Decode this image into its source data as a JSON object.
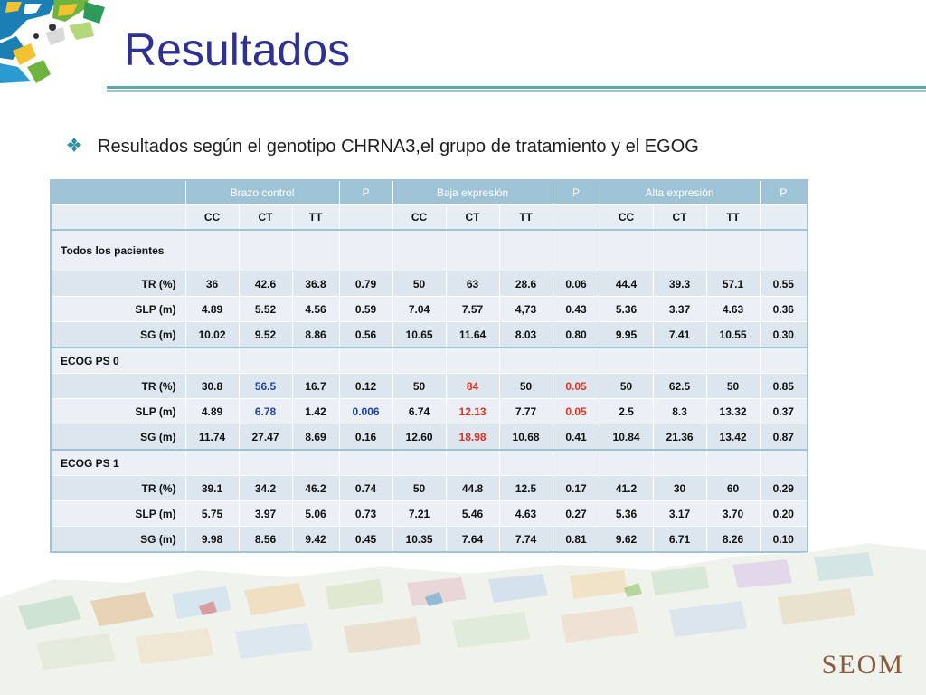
{
  "slide": {
    "title": "Resultados",
    "subtitle": "Resultados según el genotipo CHRNA3,el grupo de tratamiento y el EGOG",
    "logo_text": "SEOM"
  },
  "colors": {
    "title": "#2e3192",
    "header_bg": "#9ec3d6",
    "highlight_blue": "#1f3fa8",
    "highlight_red": "#e0311e"
  },
  "table": {
    "group_headers": [
      "",
      "Brazo control",
      "P",
      "Baja expresión",
      "P",
      "Alta expresión",
      "P"
    ],
    "sub_headers": [
      "",
      "CC",
      "CT",
      "TT",
      "",
      "CC",
      "CT",
      "TT",
      "",
      "CC",
      "CT",
      "TT",
      ""
    ],
    "sections": [
      {
        "label": "Todos los pacientes",
        "rows": [
          {
            "label": "TR (%)",
            "cells": [
              "36",
              "42.6",
              "36.8",
              "0.79",
              "50",
              "63",
              "28.6",
              "0.06",
              "44.4",
              "39.3",
              "57.1",
              "0.55"
            ]
          },
          {
            "label": "SLP (m)",
            "cells": [
              "4.89",
              "5.52",
              "4.56",
              "0.59",
              "7.04",
              "7.57",
              "4,73",
              "0.43",
              "5.36",
              "3.37",
              "4.63",
              "0.36"
            ]
          },
          {
            "label": "SG  (m)",
            "cells": [
              "10.02",
              "9.52",
              "8.86",
              "0.56",
              "10.65",
              "11.64",
              "8.03",
              "0.80",
              "9.95",
              "7.41",
              "10.55",
              "0.30"
            ]
          }
        ]
      },
      {
        "label": "ECOG PS 0",
        "rows": [
          {
            "label": "TR  (%)",
            "cells": [
              "30.8",
              "56.5",
              "16.7",
              "0.12",
              "50",
              "84",
              "50",
              "0.05",
              "50",
              "62.5",
              "50",
              "0.85"
            ]
          },
          {
            "label": "SLP  (m)",
            "cells": [
              "4.89",
              "6.78",
              "1.42",
              "0.006",
              "6.74",
              "12.13",
              "7.77",
              "0.05",
              "2.5",
              "8.3",
              "13.32",
              "0.37"
            ]
          },
          {
            "label": "SG (m)",
            "cells": [
              "11.74",
              "27.47",
              "8.69",
              "0.16",
              "12.60",
              "18.98",
              "10.68",
              "0.41",
              "10.84",
              "21.36",
              "13.42",
              "0.87"
            ]
          }
        ]
      },
      {
        "label": "ECOG PS 1",
        "rows": [
          {
            "label": "TR  (%)",
            "cells": [
              "39.1",
              "34.2",
              "46.2",
              "0.74",
              "50",
              "44.8",
              "12.5",
              "0.17",
              "41.2",
              "30",
              "60",
              "0.29"
            ]
          },
          {
            "label": "SLP  (m)",
            "cells": [
              "5.75",
              "3.97",
              "5.06",
              "0.73",
              "7.21",
              "5.46",
              "4.63",
              "0.27",
              "5.36",
              "3.17",
              "3.70",
              "0.20"
            ]
          },
          {
            "label": "SG  (m)",
            "cells": [
              "9.98",
              "8.56",
              "9.42",
              "0.45",
              "10.35",
              "7.64",
              "7.74",
              "0.81",
              "9.62",
              "6.71",
              "8.26",
              "0.10"
            ]
          }
        ]
      }
    ]
  }
}
